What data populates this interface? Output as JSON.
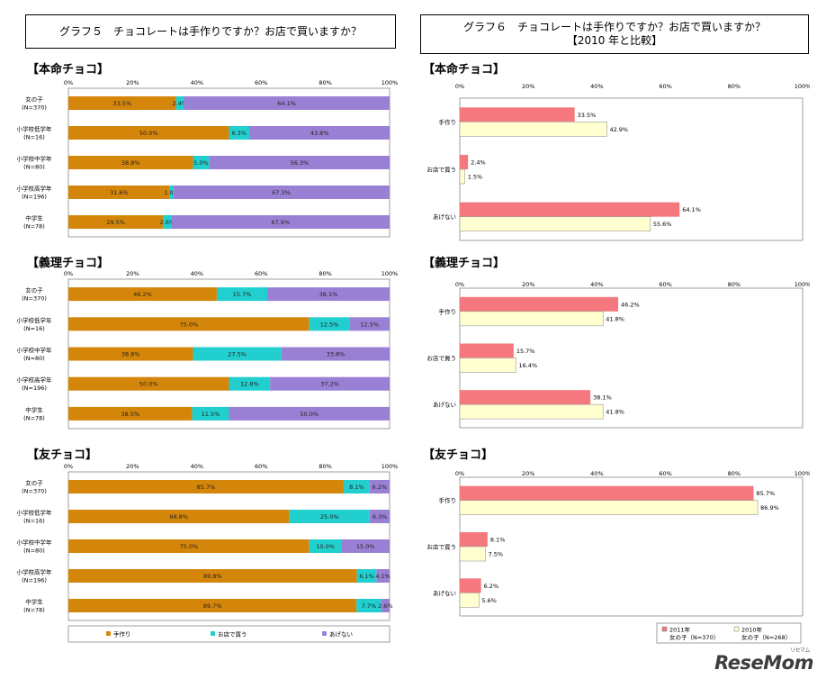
{
  "titles": {
    "graph5": "グラフ５　チョコレートは手作りですか？お店で買いますか？",
    "graph6_line1": "グラフ６　チョコレートは手作りですか？お店で買いますか？",
    "graph6_line2": "【2010 年と比較】"
  },
  "watermark": {
    "main": "ReseMom",
    "sub": "リセマム"
  },
  "colors": {
    "handmade": "#d4860a",
    "store": "#22cfcf",
    "none": "#9a80d4",
    "y2011": "#f4787d",
    "y2010": "#ffffd0"
  },
  "chart_data": [
    {
      "type": "bar",
      "stacked": true,
      "orientation": "horizontal",
      "title": "【本命チョコ】",
      "categories": [
        {
          "name": "女の子",
          "n": "(N=370)"
        },
        {
          "name": "小学校低学年",
          "n": "(N=16)"
        },
        {
          "name": "小学校中学年",
          "n": "(N=80)"
        },
        {
          "name": "小学校高学年",
          "n": "(N=196)"
        },
        {
          "name": "中学生",
          "n": "(N=78)"
        }
      ],
      "series": [
        {
          "name": "手作り",
          "values": [
            33.5,
            50.0,
            38.8,
            31.6,
            29.5
          ]
        },
        {
          "name": "お店で買う",
          "values": [
            2.4,
            6.3,
            5.0,
            1.0,
            2.6
          ]
        },
        {
          "name": "あげない",
          "values": [
            64.1,
            43.8,
            56.3,
            67.3,
            67.9
          ]
        }
      ],
      "xticks": [
        "0%",
        "20%",
        "40%",
        "60%",
        "80%",
        "100%"
      ],
      "xlim": [
        0,
        100
      ]
    },
    {
      "type": "bar",
      "stacked": true,
      "orientation": "horizontal",
      "title": "【義理チョコ】",
      "categories": [
        {
          "name": "女の子",
          "n": "(N=370)"
        },
        {
          "name": "小学校低学年",
          "n": "(N=16)"
        },
        {
          "name": "小学校中学年",
          "n": "(N=80)"
        },
        {
          "name": "小学校高学年",
          "n": "(N=196)"
        },
        {
          "name": "中学生",
          "n": "(N=78)"
        }
      ],
      "series": [
        {
          "name": "手作り",
          "values": [
            46.2,
            75.0,
            38.8,
            50.0,
            38.5
          ]
        },
        {
          "name": "お店で買う",
          "values": [
            15.7,
            12.5,
            27.5,
            12.8,
            11.5
          ]
        },
        {
          "name": "あげない",
          "values": [
            38.1,
            12.5,
            33.8,
            37.2,
            50.0
          ]
        }
      ],
      "xticks": [
        "0%",
        "20%",
        "40%",
        "60%",
        "80%",
        "100%"
      ],
      "xlim": [
        0,
        100
      ]
    },
    {
      "type": "bar",
      "stacked": true,
      "orientation": "horizontal",
      "title": "【友チョコ】",
      "categories": [
        {
          "name": "女の子",
          "n": "(N=370)"
        },
        {
          "name": "小学校低学年",
          "n": "(N=16)"
        },
        {
          "name": "小学校中学年",
          "n": "(N=80)"
        },
        {
          "name": "小学校高学年",
          "n": "(N=196)"
        },
        {
          "name": "中学生",
          "n": "(N=78)"
        }
      ],
      "series": [
        {
          "name": "手作り",
          "values": [
            85.7,
            68.8,
            75.0,
            89.8,
            89.7
          ]
        },
        {
          "name": "お店で買う",
          "values": [
            8.1,
            25.0,
            10.0,
            6.1,
            7.7
          ]
        },
        {
          "name": "あげない",
          "values": [
            6.2,
            6.3,
            15.0,
            4.1,
            2.6
          ]
        }
      ],
      "xticks": [
        "0%",
        "20%",
        "40%",
        "60%",
        "80%",
        "100%"
      ],
      "xlim": [
        0,
        100
      ],
      "legend": [
        "手作り",
        "お店で買う",
        "あげない"
      ]
    },
    {
      "type": "bar",
      "orientation": "horizontal",
      "title": "【本命チョコ】",
      "categories": [
        "手作り",
        "お店で買う",
        "あげない"
      ],
      "series": [
        {
          "name": "2011年 女の子（N=370）",
          "values": [
            33.5,
            2.4,
            64.1
          ]
        },
        {
          "name": "2010年 女の子（N=268）",
          "values": [
            42.9,
            1.5,
            55.6
          ]
        }
      ],
      "xticks": [
        "0%",
        "20%",
        "40%",
        "60%",
        "80%",
        "100%"
      ],
      "xlim": [
        0,
        100
      ]
    },
    {
      "type": "bar",
      "orientation": "horizontal",
      "title": "【義理チョコ】",
      "categories": [
        "手作り",
        "お店で買う",
        "あげない"
      ],
      "series": [
        {
          "name": "2011年 女の子（N=370）",
          "values": [
            46.2,
            15.7,
            38.1
          ]
        },
        {
          "name": "2010年 女の子（N=268）",
          "values": [
            41.8,
            16.4,
            41.8
          ]
        }
      ],
      "xticks": [
        "0%",
        "20%",
        "40%",
        "60%",
        "80%",
        "100%"
      ],
      "xlim": [
        0,
        100
      ]
    },
    {
      "type": "bar",
      "orientation": "horizontal",
      "title": "【友チョコ】",
      "categories": [
        "手作り",
        "お店で買う",
        "あげない"
      ],
      "series": [
        {
          "name": "2011年 女の子（N=370）",
          "values": [
            85.7,
            8.1,
            6.2
          ]
        },
        {
          "name": "2010年 女の子（N=268）",
          "values": [
            86.9,
            7.5,
            5.6
          ]
        }
      ],
      "xticks": [
        "0%",
        "20%",
        "40%",
        "60%",
        "80%",
        "100%"
      ],
      "xlim": [
        0,
        100
      ],
      "legend": [
        {
          "year": "2011年",
          "group": "女の子（N=370）"
        },
        {
          "year": "2010年",
          "group": "女の子（N=268）"
        }
      ]
    }
  ]
}
